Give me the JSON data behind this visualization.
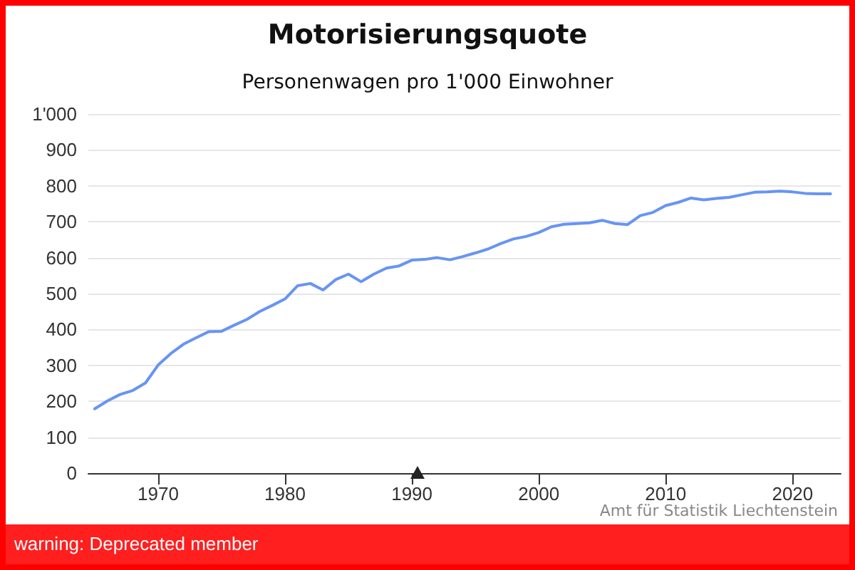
{
  "chart_data": {
    "type": "line",
    "title": "Motorisierungsquote",
    "subtitle": "Personenwagen pro 1'000 Einwohner",
    "annotations": [
      "Amt für Statistik Liechtenstein",
      "warning: Deprecated member"
    ],
    "x": [
      1965,
      1966,
      1967,
      1968,
      1969,
      1970,
      1971,
      1972,
      1973,
      1974,
      1975,
      1976,
      1977,
      1978,
      1979,
      1980,
      1981,
      1982,
      1983,
      1984,
      1985,
      1986,
      1987,
      1988,
      1989,
      1990,
      1991,
      1992,
      1993,
      1994,
      1995,
      1996,
      1997,
      1998,
      1999,
      2000,
      2001,
      2002,
      2003,
      2004,
      2005,
      2006,
      2007,
      2008,
      2009,
      2010,
      2011,
      2012,
      2013,
      2014,
      2015,
      2016,
      2017,
      2018,
      2019,
      2020,
      2021,
      2022,
      2023
    ],
    "series": [
      {
        "color": "#6794f5",
        "values": [
          179,
          201,
          219,
          230,
          251,
          301,
          333,
          359,
          377,
          394,
          395,
          412,
          428,
          450,
          467,
          485,
          522,
          528,
          510,
          539,
          554,
          533,
          554,
          571,
          577,
          593,
          595,
          600,
          594,
          603,
          613,
          624,
          639,
          652,
          659,
          670,
          686,
          693,
          695,
          697,
          704,
          695,
          692,
          717,
          726,
          745,
          754,
          766,
          761,
          765,
          768,
          775,
          782,
          783,
          785,
          783,
          779,
          778,
          778
        ]
      }
    ],
    "xlim": [
      1964.5,
      2023.8
    ],
    "xticks": [
      1970,
      1980,
      1990,
      2000,
      2010,
      2020
    ],
    "ylim": [
      0,
      1000
    ],
    "yticks": [
      0,
      100,
      200,
      300,
      400,
      500,
      600,
      700,
      800,
      900,
      {
        "value": 1000,
        "label": "1'000"
      }
    ],
    "grid": "y",
    "marker": "none",
    "line_style": "solid"
  }
}
